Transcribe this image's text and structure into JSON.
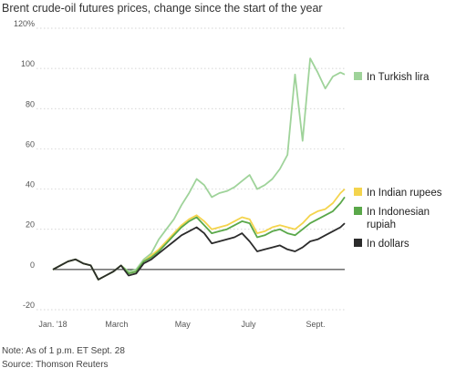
{
  "title": "Brent crude-oil futures prices, change since the start of the year",
  "note": "Note: As of 1 p.m. ET Sept. 28",
  "source": "Source: Thomson Reuters",
  "colors": {
    "lira": "#9fd39a",
    "rupees": "#f4d44d",
    "rupiah": "#5aa84a",
    "dollars": "#2b2b2b",
    "grid": "#c8c8c8",
    "zero": "#222222"
  },
  "chart_data": {
    "type": "line",
    "title": "Brent crude-oil futures prices, change since the start of the year",
    "xlabel": "",
    "ylabel": "",
    "x_ticks": [
      "Jan. '18",
      "March",
      "May",
      "July",
      "Sept."
    ],
    "y_ticks": [
      "120%",
      "100",
      "80",
      "60",
      "40",
      "20",
      "0",
      "-20"
    ],
    "ylim": [
      -20,
      120
    ],
    "x_range": [
      "2018-01-01",
      "2018-09-28"
    ],
    "grid": "horizontal",
    "legend_position": "right",
    "x": [
      "2018-01-01",
      "2018-01-08",
      "2018-01-15",
      "2018-01-22",
      "2018-01-29",
      "2018-02-05",
      "2018-02-12",
      "2018-02-19",
      "2018-02-26",
      "2018-03-05",
      "2018-03-12",
      "2018-03-19",
      "2018-03-26",
      "2018-04-02",
      "2018-04-09",
      "2018-04-16",
      "2018-04-23",
      "2018-04-30",
      "2018-05-07",
      "2018-05-14",
      "2018-05-21",
      "2018-05-28",
      "2018-06-04",
      "2018-06-11",
      "2018-06-18",
      "2018-06-25",
      "2018-07-02",
      "2018-07-09",
      "2018-07-16",
      "2018-07-23",
      "2018-07-30",
      "2018-08-06",
      "2018-08-13",
      "2018-08-20",
      "2018-08-27",
      "2018-09-03",
      "2018-09-10",
      "2018-09-17",
      "2018-09-24",
      "2018-09-28"
    ],
    "series": [
      {
        "name": "In Turkish lira",
        "values": [
          0,
          2,
          4,
          5,
          3,
          2,
          -5,
          -3,
          -1,
          2,
          -1,
          0,
          5,
          8,
          15,
          20,
          25,
          32,
          38,
          45,
          42,
          36,
          38,
          39,
          41,
          44,
          47,
          40,
          42,
          45,
          50,
          57,
          97,
          64,
          105,
          98,
          90,
          96,
          98,
          97
        ]
      },
      {
        "name": "In Indian rupees",
        "values": [
          0,
          2,
          4,
          5,
          3,
          2,
          -5,
          -3,
          -1,
          2,
          -2,
          -1,
          4,
          7,
          10,
          14,
          18,
          22,
          25,
          27,
          24,
          20,
          21,
          22,
          24,
          26,
          25,
          18,
          19,
          21,
          22,
          21,
          20,
          23,
          27,
          29,
          30,
          33,
          38,
          40
        ]
      },
      {
        "name": "In Indonesian rupiah",
        "values": [
          0,
          2,
          4,
          5,
          3,
          2,
          -5,
          -3,
          -1,
          2,
          -2,
          -1,
          4,
          6,
          9,
          13,
          17,
          21,
          24,
          26,
          22,
          18,
          19,
          20,
          22,
          24,
          23,
          16,
          17,
          19,
          20,
          18,
          17,
          20,
          23,
          25,
          27,
          29,
          33,
          36
        ]
      },
      {
        "name": "In dollars",
        "values": [
          0,
          2,
          4,
          5,
          3,
          2,
          -5,
          -3,
          -1,
          2,
          -3,
          -2,
          3,
          5,
          8,
          11,
          14,
          17,
          19,
          21,
          18,
          13,
          14,
          15,
          16,
          18,
          14,
          9,
          10,
          11,
          12,
          10,
          9,
          11,
          14,
          15,
          17,
          19,
          21,
          23
        ]
      }
    ]
  }
}
